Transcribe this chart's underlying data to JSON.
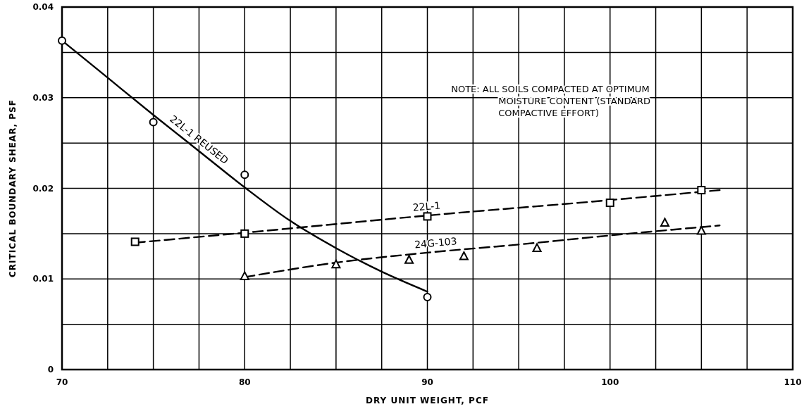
{
  "chart_data": {
    "type": "line",
    "xlabel": "DRY UNIT WEIGHT, PCF",
    "ylabel": "CRITICAL BOUNDARY SHEAR, PSF",
    "xlim": [
      70,
      110
    ],
    "ylim": [
      0,
      0.04
    ],
    "xticks": [
      70,
      {
        "value": 72.5,
        "label": null
      },
      {
        "value": 75,
        "label": null
      },
      {
        "value": 77.5,
        "label": null
      },
      80,
      {
        "value": 82.5,
        "label": null
      },
      {
        "value": 85,
        "label": null
      },
      {
        "value": 87.5,
        "label": null
      },
      90,
      {
        "value": 92.5,
        "label": null
      },
      {
        "value": 95,
        "label": null
      },
      {
        "value": 97.5,
        "label": null
      },
      100,
      {
        "value": 102.5,
        "label": null
      },
      {
        "value": 105,
        "label": null
      },
      {
        "value": 107.5,
        "label": null
      },
      110
    ],
    "yticks": [
      0,
      {
        "value": 0.005,
        "label": null
      },
      0.01,
      {
        "value": 0.015,
        "label": null
      },
      0.02,
      {
        "value": 0.025,
        "label": null
      },
      0.03,
      {
        "value": 0.035,
        "label": null
      },
      0.04
    ],
    "grid": true,
    "series": [
      {
        "name": "22L-1 REUSED",
        "color": "#000000",
        "line_style": "solid",
        "marker": "none",
        "x": [
          70,
          72.5,
          75,
          77.5,
          80,
          82.5,
          85,
          87.5,
          90
        ],
        "values": [
          0.0363,
          0.0322,
          0.0281,
          0.0241,
          0.0201,
          0.0164,
          0.0134,
          0.0108,
          0.0086
        ]
      },
      {
        "type": "scatter",
        "color": "#000000",
        "marker": "circle",
        "x": [
          70,
          75,
          80,
          90
        ],
        "values": [
          0.0363,
          0.0273,
          0.0215,
          0.008
        ]
      },
      {
        "name": "22L-1",
        "color": "#000000",
        "line_style": "dashed",
        "marker": "none",
        "x": [
          74,
          80,
          90,
          100,
          106
        ],
        "values": [
          0.014,
          0.0151,
          0.017,
          0.0187,
          0.0198
        ]
      },
      {
        "type": "scatter",
        "color": "#000000",
        "marker": "square",
        "x": [
          74,
          80,
          90,
          100,
          105
        ],
        "values": [
          0.0141,
          0.015,
          0.0169,
          0.0184,
          0.0198
        ]
      },
      {
        "name": "24G-103",
        "color": "#000000",
        "line_style": "dashed",
        "marker": "none",
        "x": [
          80,
          85,
          90,
          95,
          100,
          106
        ],
        "values": [
          0.0102,
          0.0118,
          0.0129,
          0.0138,
          0.0148,
          0.0159
        ]
      },
      {
        "type": "scatter",
        "color": "#000000",
        "marker": "triangle",
        "x": [
          80,
          85,
          89,
          92,
          96,
          103,
          105
        ],
        "values": [
          0.0103,
          0.0116,
          0.0121,
          0.0125,
          0.0134,
          0.0162,
          0.0153
        ]
      }
    ],
    "annotations": [
      "NOTE:  ALL SOILS COMPACTED AT OPTIMUM\nMOISTURE CONTENT (STANDARD\nCOMPACTIVE EFFORT)"
    ]
  }
}
